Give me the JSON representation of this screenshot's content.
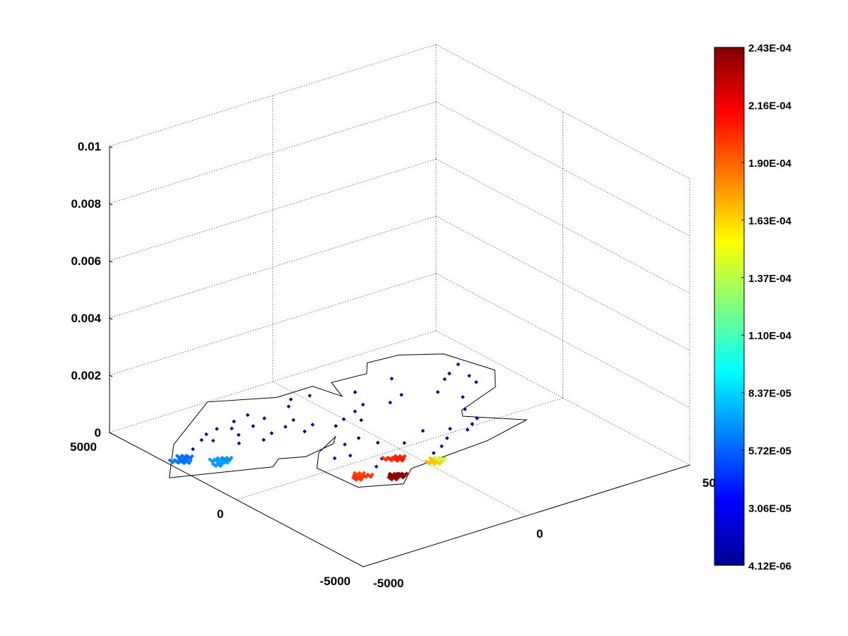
{
  "chart_data": {
    "type": "scatter",
    "title": "",
    "xlabel": "",
    "ylabel": "",
    "zlabel": "",
    "view": "3d",
    "grid": true,
    "xlim": [
      -5000,
      5000
    ],
    "ylim": [
      -5000,
      5000
    ],
    "zlim": [
      0,
      0.01
    ],
    "x_ticks": [
      "-5000",
      "0",
      "5000"
    ],
    "y_ticks": [
      "-5000",
      "0",
      "5000"
    ],
    "z_ticks": [
      "0",
      "0.002",
      "0.004",
      "0.006",
      "0.008",
      "0.01"
    ],
    "colormap": "jet",
    "colorbar": {
      "min": 4.12e-06,
      "max": 0.000243,
      "tick_labels": [
        "4.12E-06",
        "3.06E-05",
        "5.72E-05",
        "8.37E-05",
        "1.10E-04",
        "1.37E-04",
        "1.63E-04",
        "1.90E-04",
        "2.16E-04",
        "2.43E-04"
      ]
    },
    "outline_xy": [
      [
        -5500,
        2000
      ],
      [
        -4200,
        3500
      ],
      [
        -2000,
        5000
      ],
      [
        -500,
        4200
      ],
      [
        600,
        4200
      ],
      [
        800,
        3300
      ],
      [
        1100,
        4100
      ],
      [
        2100,
        4000
      ],
      [
        2500,
        4500
      ],
      [
        3400,
        4400
      ],
      [
        4300,
        3800
      ],
      [
        4700,
        2300
      ],
      [
        4100,
        1500
      ],
      [
        2600,
        900
      ],
      [
        2400,
        600
      ],
      [
        3500,
        -500
      ],
      [
        2000,
        -900
      ],
      [
        -500,
        -1100
      ],
      [
        -1200,
        -1700
      ],
      [
        -2200,
        -1200
      ],
      [
        -2300,
        300
      ],
      [
        -1700,
        1000
      ],
      [
        -800,
        1500
      ],
      [
        -1100,
        1200
      ],
      [
        -2100,
        1000
      ],
      [
        -2700,
        1300
      ],
      [
        -3100,
        1000
      ]
    ],
    "points": [
      {
        "x": -4700,
        "y": 2600,
        "c": 6e-05
      },
      {
        "x": -4500,
        "y": 2800,
        "c": 6.2e-05
      },
      {
        "x": -4600,
        "y": 2500,
        "c": 6.1e-05
      },
      {
        "x": -4400,
        "y": 2700,
        "c": 5.9e-05
      },
      {
        "x": -4800,
        "y": 2700,
        "c": 6.3e-05
      },
      {
        "x": -4550,
        "y": 2650,
        "c": 6e-05
      },
      {
        "x": -4100,
        "y": 1900,
        "c": 7e-05
      },
      {
        "x": -3900,
        "y": 2000,
        "c": 7.2e-05
      },
      {
        "x": -3800,
        "y": 2100,
        "c": 6.9e-05
      },
      {
        "x": -4000,
        "y": 2150,
        "c": 7.1e-05
      },
      {
        "x": -3850,
        "y": 1950,
        "c": 7.3e-05
      },
      {
        "x": -3700,
        "y": 2050,
        "c": 6.8e-05
      },
      {
        "x": -4000,
        "y": 3000,
        "c": 1.2e-05
      },
      {
        "x": -3500,
        "y": 3300,
        "c": 1e-05
      },
      {
        "x": -3200,
        "y": 3500,
        "c": 9e-06
      },
      {
        "x": -3300,
        "y": 3100,
        "c": 1.1e-05
      },
      {
        "x": -2800,
        "y": 3600,
        "c": 8e-06
      },
      {
        "x": -2500,
        "y": 3400,
        "c": 1.3e-05
      },
      {
        "x": -2200,
        "y": 3700,
        "c": 9e-06
      },
      {
        "x": -2600,
        "y": 3000,
        "c": 1e-05
      },
      {
        "x": -2000,
        "y": 3200,
        "c": 1.1e-05
      },
      {
        "x": -1700,
        "y": 3800,
        "c": 7e-06
      },
      {
        "x": -1500,
        "y": 3400,
        "c": 1.2e-05
      },
      {
        "x": -2900,
        "y": 2600,
        "c": 1e-05
      },
      {
        "x": -2300,
        "y": 2400,
        "c": 9e-06
      },
      {
        "x": -1900,
        "y": 2600,
        "c": 1.1e-05
      },
      {
        "x": -1400,
        "y": 2700,
        "c": 8e-06
      },
      {
        "x": -1000,
        "y": 2900,
        "c": 1e-05
      },
      {
        "x": -1200,
        "y": 2200,
        "c": 9e-06
      },
      {
        "x": -800,
        "y": 2400,
        "c": 1.2e-05
      },
      {
        "x": -600,
        "y": 3600,
        "c": 8e-06
      },
      {
        "x": -300,
        "y": 3900,
        "c": 9e-06
      },
      {
        "x": 200,
        "y": 3800,
        "c": 1e-05
      },
      {
        "x": -400,
        "y": 2000,
        "c": 1.1e-05
      },
      {
        "x": 0,
        "y": 2200,
        "c": 9e-06
      },
      {
        "x": 300,
        "y": 1900,
        "c": 1e-05
      },
      {
        "x": 500,
        "y": 2400,
        "c": 8e-06
      },
      {
        "x": 900,
        "y": 2600,
        "c": 1.2e-05
      },
      {
        "x": 1200,
        "y": 3300,
        "c": 9e-06
      },
      {
        "x": 1500,
        "y": 2300,
        "c": 1.1e-05
      },
      {
        "x": 2000,
        "y": 2500,
        "c": 1e-05
      },
      {
        "x": 2400,
        "y": 3400,
        "c": 9e-06
      },
      {
        "x": 2800,
        "y": 2100,
        "c": 1.1e-05
      },
      {
        "x": 3400,
        "y": 2600,
        "c": 8e-06
      },
      {
        "x": 3700,
        "y": 2800,
        "c": 1e-05
      },
      {
        "x": 4000,
        "y": 2400,
        "c": 9e-06
      },
      {
        "x": 3900,
        "y": 2000,
        "c": 1.1e-05
      },
      {
        "x": 4200,
        "y": 3100,
        "c": 1.2e-05
      },
      {
        "x": 3100,
        "y": 1500,
        "c": 9e-06
      },
      {
        "x": 2700,
        "y": 900,
        "c": 1e-05
      },
      {
        "x": -1600,
        "y": 500,
        "c": 1.1e-05
      },
      {
        "x": -1200,
        "y": 400,
        "c": 9e-06
      },
      {
        "x": -900,
        "y": 1000,
        "c": 1.2e-05
      },
      {
        "x": -400,
        "y": 1100,
        "c": 1e-05
      },
      {
        "x": -200,
        "y": 600,
        "c": 8e-06
      },
      {
        "x": 300,
        "y": 200,
        "c": 1.1e-05
      },
      {
        "x": 1100,
        "y": 500,
        "c": 9e-06
      },
      {
        "x": 1700,
        "y": 200,
        "c": 1e-05
      },
      {
        "x": 2000,
        "y": -100,
        "c": 1.2e-05
      },
      {
        "x": 2300,
        "y": 100,
        "c": 9e-06
      },
      {
        "x": 2600,
        "y": 300,
        "c": 1.1e-05
      },
      {
        "x": 900,
        "y": -500,
        "c": 1e-05
      },
      {
        "x": 1300,
        "y": -200,
        "c": 9e-06
      },
      {
        "x": -700,
        "y": -200,
        "c": 1.1e-05
      },
      {
        "x": -1100,
        "y": -500,
        "c": 1e-05
      },
      {
        "x": 500,
        "y": -700,
        "c": 1.2e-05
      },
      {
        "x": -1800,
        "y": -700,
        "c": 0.0002
      },
      {
        "x": -1600,
        "y": -800,
        "c": 0.000202
      },
      {
        "x": -1700,
        "y": -600,
        "c": 0.000198
      },
      {
        "x": -1900,
        "y": -800,
        "c": 0.000201
      },
      {
        "x": -1100,
        "y": -1200,
        "c": 0.00024
      },
      {
        "x": -1000,
        "y": -1300,
        "c": 0.000243
      },
      {
        "x": -1200,
        "y": -1300,
        "c": 0.000238
      },
      {
        "x": -1050,
        "y": -1150,
        "c": 0.000241
      },
      {
        "x": -900,
        "y": -1250,
        "c": 0.000239
      },
      {
        "x": -500,
        "y": -400,
        "c": 0.000205
      },
      {
        "x": -400,
        "y": -500,
        "c": 0.000208
      },
      {
        "x": -600,
        "y": -300,
        "c": 0.000203
      },
      {
        "x": -300,
        "y": -400,
        "c": 0.000206
      },
      {
        "x": 100,
        "y": -1100,
        "c": 0.00017
      },
      {
        "x": 200,
        "y": -1200,
        "c": 0.000165
      },
      {
        "x": 300,
        "y": -1000,
        "c": 0.000168
      },
      {
        "x": 400,
        "y": -1100,
        "c": 0.00014
      }
    ]
  }
}
